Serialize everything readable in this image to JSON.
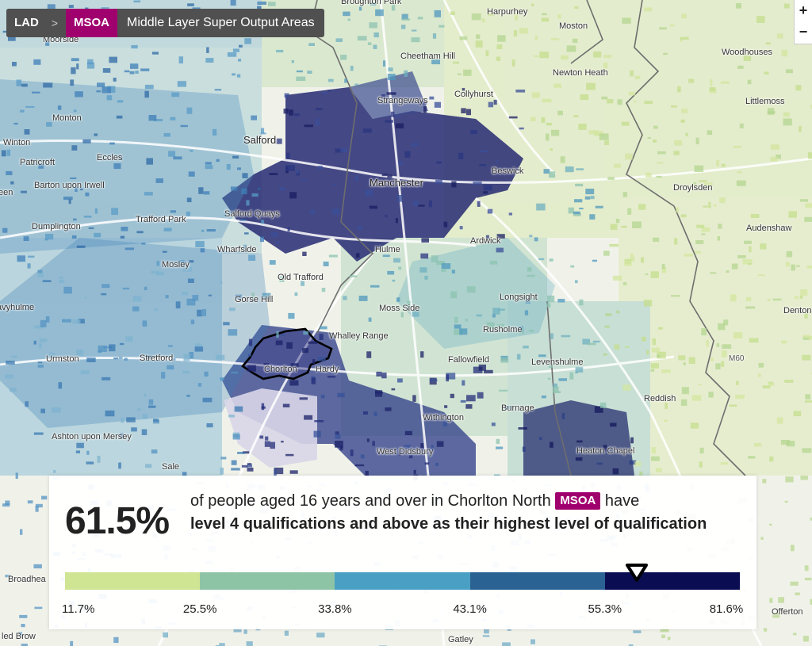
{
  "breadcrumb": {
    "lad_label": "LAD",
    "separator": ">",
    "msoa_label": "MSOA",
    "msoa_full": "Middle Layer Super Output Areas"
  },
  "zoom": {
    "in": "+",
    "out": "−"
  },
  "places": {
    "broughton_park": "Broughton Park",
    "harpurhey": "Harpurhey",
    "moston": "Moston",
    "moorside": "Moorside",
    "cheetham_hill": "Cheetham Hill",
    "woodhouses": "Woodhouses",
    "newton_heath": "Newton Heath",
    "strangeways": "Strangeways",
    "collyhurst": "Collyhurst",
    "littlemoss": "Littlemoss",
    "monton": "Monton",
    "salford": "Salford",
    "winton": "Winton",
    "patricroft": "Patricroft",
    "eccles": "Eccles",
    "beswick": "Beswick",
    "manchester": "Manchester",
    "barton": "Barton upon Irwell",
    "een": "een",
    "droylsden": "Droylsden",
    "salford_quays": "Salford Quays",
    "trafford_park": "Trafford Park",
    "dumplington": "Dumplington",
    "audenshaw": "Audenshaw",
    "ardwick": "Ardwick",
    "wharfside": "Wharfside",
    "hulme": "Hulme",
    "mosley": "Mosley",
    "old_trafford": "Old Trafford",
    "longsight": "Longsight",
    "gorse_hill": "Gorse Hill",
    "moss_side": "Moss Side",
    "davyhulme": "avyhulme",
    "denton": "Denton",
    "rusholme": "Rusholme",
    "whalley_range": "Whalley Range",
    "m60": "M60",
    "urmston": "Urmston",
    "stretford": "Stretford",
    "fallowfield": "Fallowfield",
    "levenshulme": "Levenshulme",
    "chorlton": "Chorlton",
    "hardy": "Hardy",
    "reddish": "Reddish",
    "burnage": "Burnage",
    "withington": "Withington",
    "ashton_mersey": "Ashton upon Mersey",
    "west_didsbury": "West Didsbury",
    "heaton_chapel": "Heaton Chapel",
    "sale": "Sale",
    "offerton": "Offerton",
    "broadheath": "Broadhea",
    "ledbrow": "led Brow",
    "gatley": "Gatley"
  },
  "panel": {
    "big_value": "61.5%",
    "text_before": "of people aged 16 years and over in Chorlton North",
    "badge": "MSOA",
    "text_after": "have",
    "bold_text": "level 4 qualifications and above as their highest level of qualification"
  },
  "legend": {
    "value": 61.5,
    "breaks": [
      "11.7%",
      "25.5%",
      "33.8%",
      "43.1%",
      "55.3%",
      "81.6%"
    ],
    "break_values": [
      11.7,
      25.5,
      33.8,
      43.1,
      55.3,
      81.6
    ],
    "colors": [
      "#cfe594",
      "#8ec4a6",
      "#4aa0c4",
      "#2a6294",
      "#0b0d52"
    ]
  },
  "colors": {
    "accent": "#a0006e",
    "dark": "#0b0d52"
  }
}
